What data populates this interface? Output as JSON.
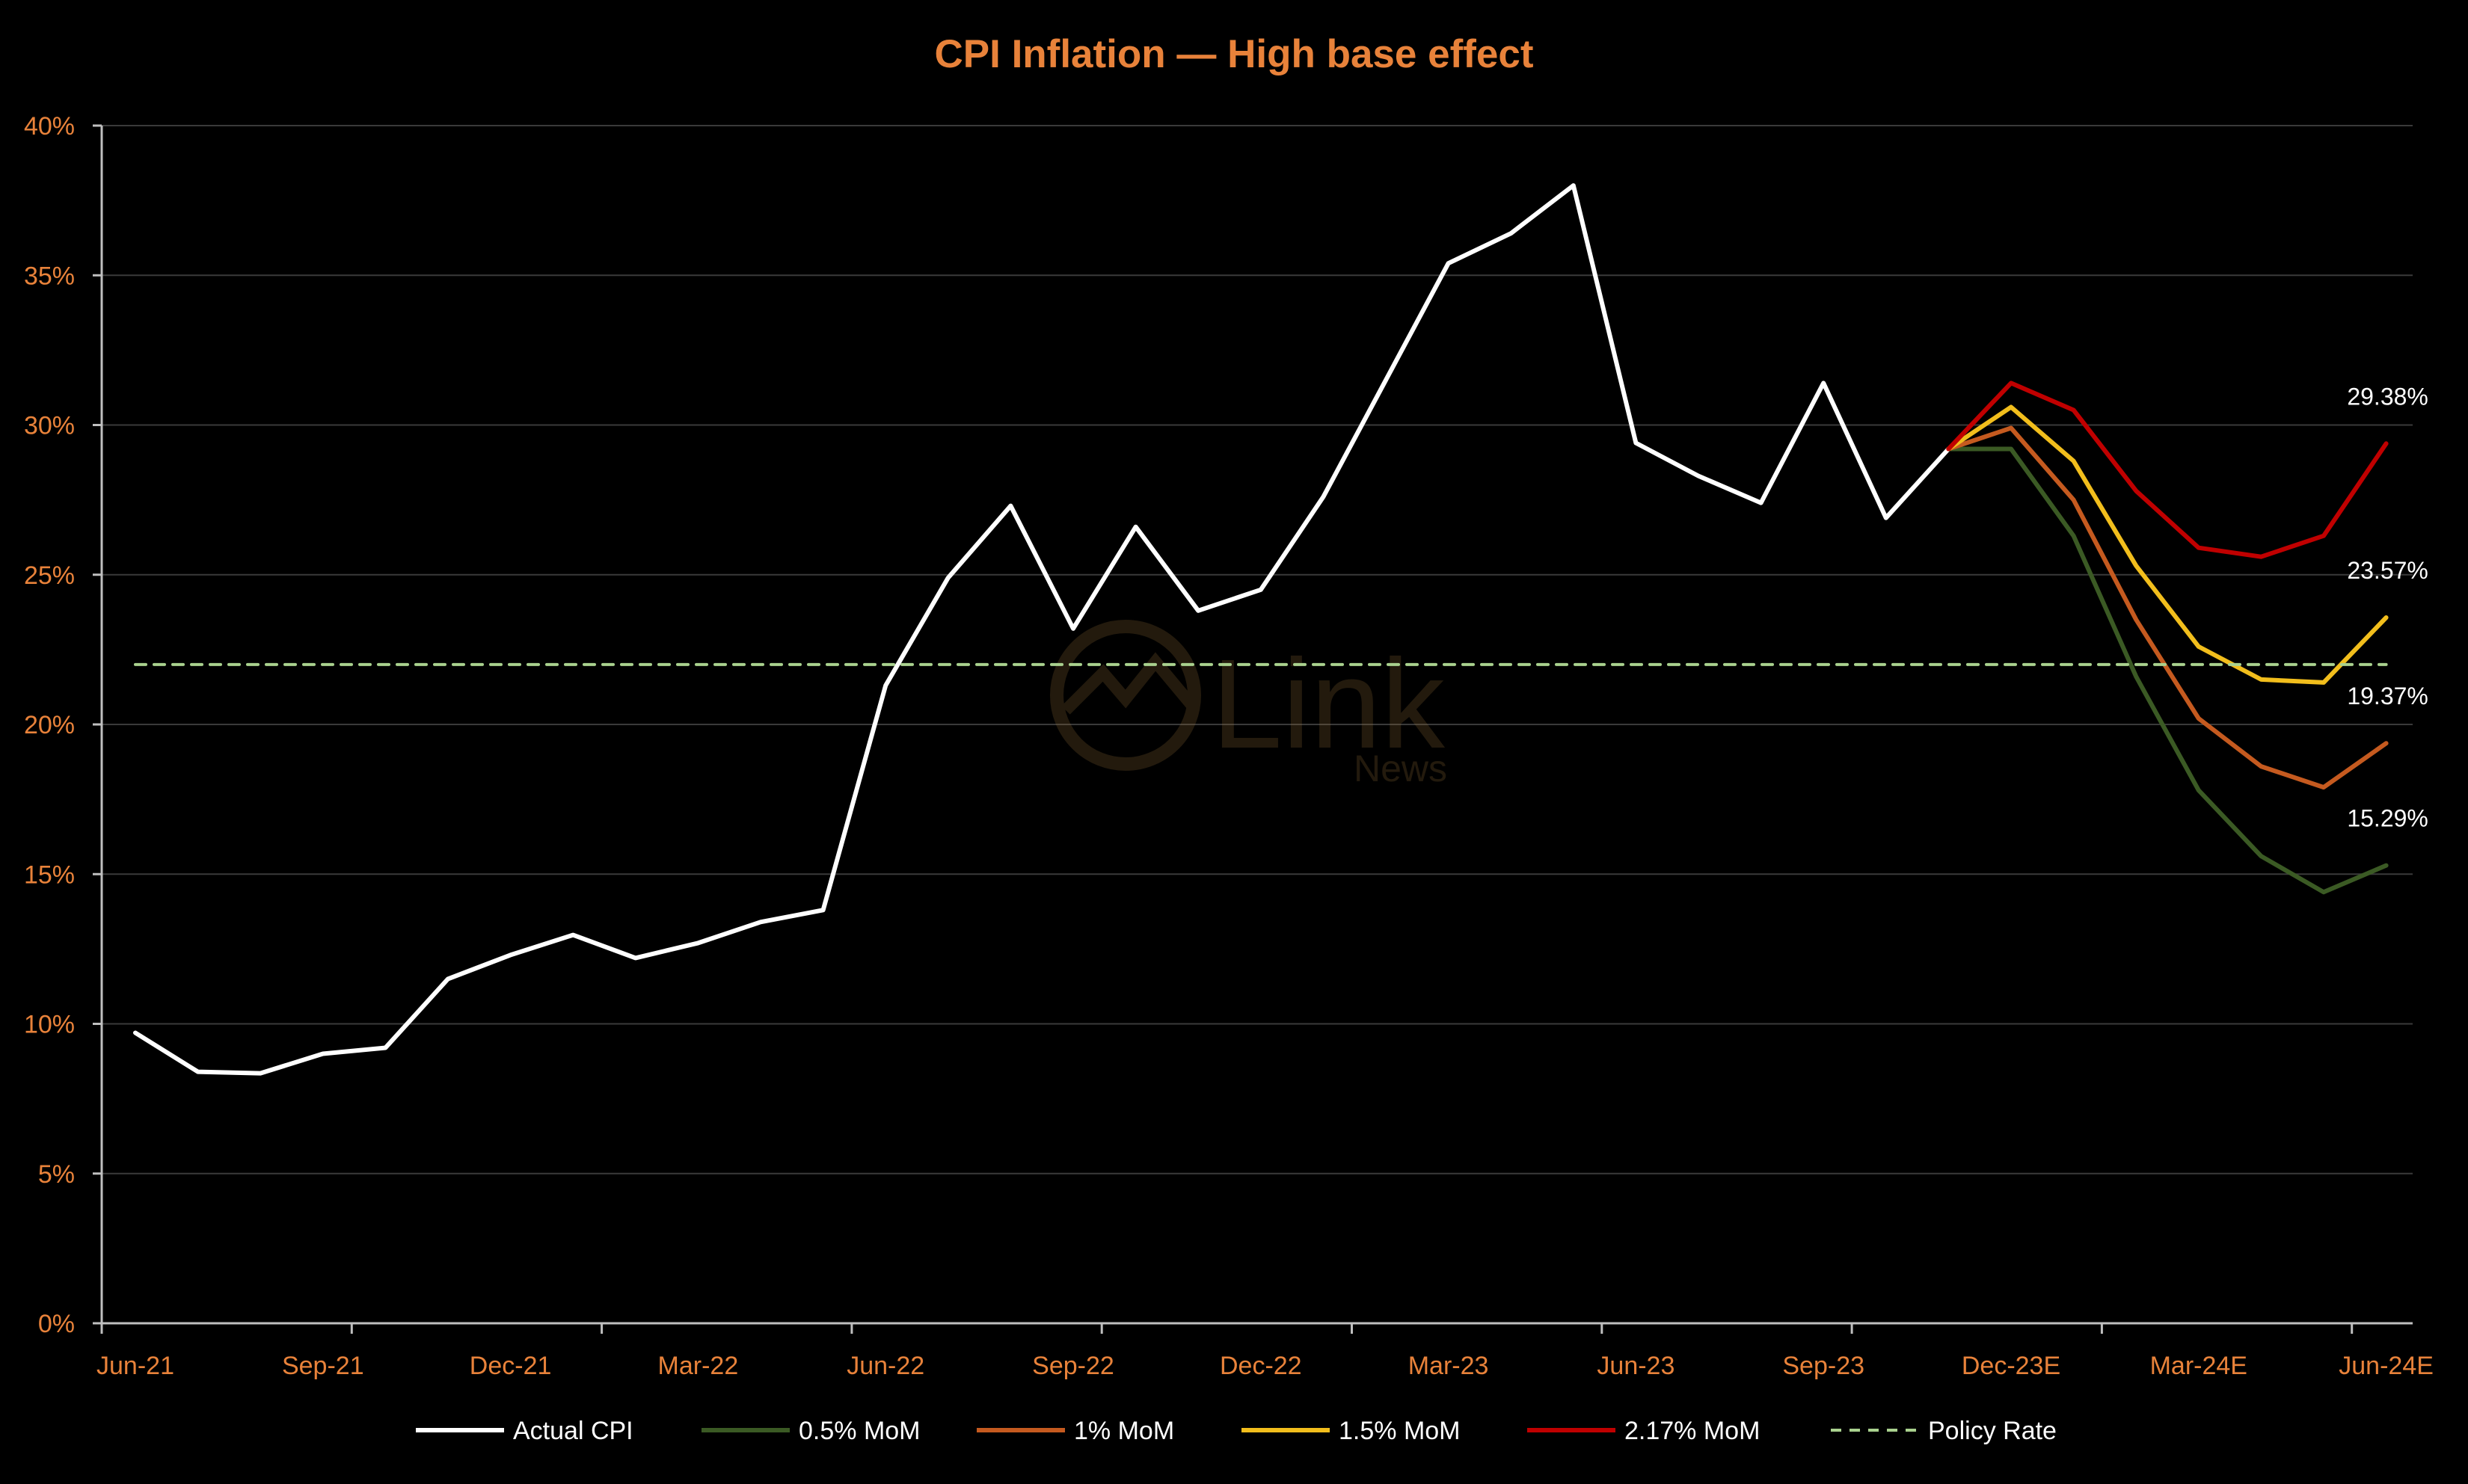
{
  "chart_data": {
    "type": "line",
    "title": "CPI Inflation — High base effect",
    "watermark": {
      "brand": "Link",
      "sub": "News"
    },
    "colors": {
      "background": "#000000",
      "axis_text": "#E8823A",
      "title": "#E8823A",
      "grid": "#3a3a3a",
      "axis": "#bfbfbf",
      "end_label": "#ffffff"
    },
    "x_ticks": [
      "Jun-21",
      "Sep-21",
      "Dec-21",
      "Mar-22",
      "Jun-22",
      "Sep-22",
      "Dec-22",
      "Mar-23",
      "Jun-23",
      "Sep-23",
      "Dec-23E",
      "Mar-24E",
      "Jun-24E"
    ],
    "x_tick_index_start": 0,
    "x_tick_step": 3,
    "y_axis": {
      "min": 0,
      "max": 40,
      "step": 5,
      "format": "percent"
    },
    "grid": true,
    "legend_position": "bottom",
    "series": [
      {
        "name": "Actual CPI",
        "color": "#ffffff",
        "start_index": 0,
        "values": [
          9.7,
          8.4,
          8.35,
          9.0,
          9.2,
          11.5,
          12.3,
          12.97,
          12.2,
          12.7,
          13.4,
          13.8,
          21.3,
          24.9,
          27.3,
          23.2,
          26.6,
          23.8,
          24.5,
          27.6,
          31.5,
          35.4,
          36.4,
          38.0,
          29.4,
          28.3,
          27.4,
          31.4,
          26.9,
          29.2
        ]
      },
      {
        "name": "0.5% MoM",
        "color": "#3b5a24",
        "start_index": 29,
        "values": [
          29.2,
          29.2,
          26.3,
          21.6,
          17.8,
          15.6,
          14.4,
          15.29
        ],
        "end_label": "15.29%"
      },
      {
        "name": "1% MoM",
        "color": "#C55A1F",
        "start_index": 29,
        "values": [
          29.2,
          29.9,
          27.5,
          23.5,
          20.2,
          18.6,
          17.9,
          19.37
        ],
        "end_label": "19.37%"
      },
      {
        "name": "1.5% MoM",
        "color": "#F2BE1C",
        "start_index": 29,
        "values": [
          29.2,
          30.6,
          28.8,
          25.3,
          22.6,
          21.5,
          21.4,
          23.57
        ],
        "end_label": "23.57%"
      },
      {
        "name": "2.17% MoM",
        "color": "#C00000",
        "start_index": 29,
        "values": [
          29.2,
          31.4,
          30.5,
          27.8,
          25.9,
          25.6,
          26.3,
          29.38
        ],
        "end_label": "29.38%"
      },
      {
        "name": "Policy Rate",
        "color": "#a9d18e",
        "dashed": true,
        "start_index": 0,
        "values": [
          22,
          22,
          22,
          22,
          22,
          22,
          22,
          22,
          22,
          22,
          22,
          22,
          22,
          22,
          22,
          22,
          22,
          22,
          22,
          22,
          22,
          22,
          22,
          22,
          22,
          22,
          22,
          22,
          22,
          22,
          22,
          22,
          22,
          22,
          22,
          22,
          22
        ]
      }
    ]
  }
}
